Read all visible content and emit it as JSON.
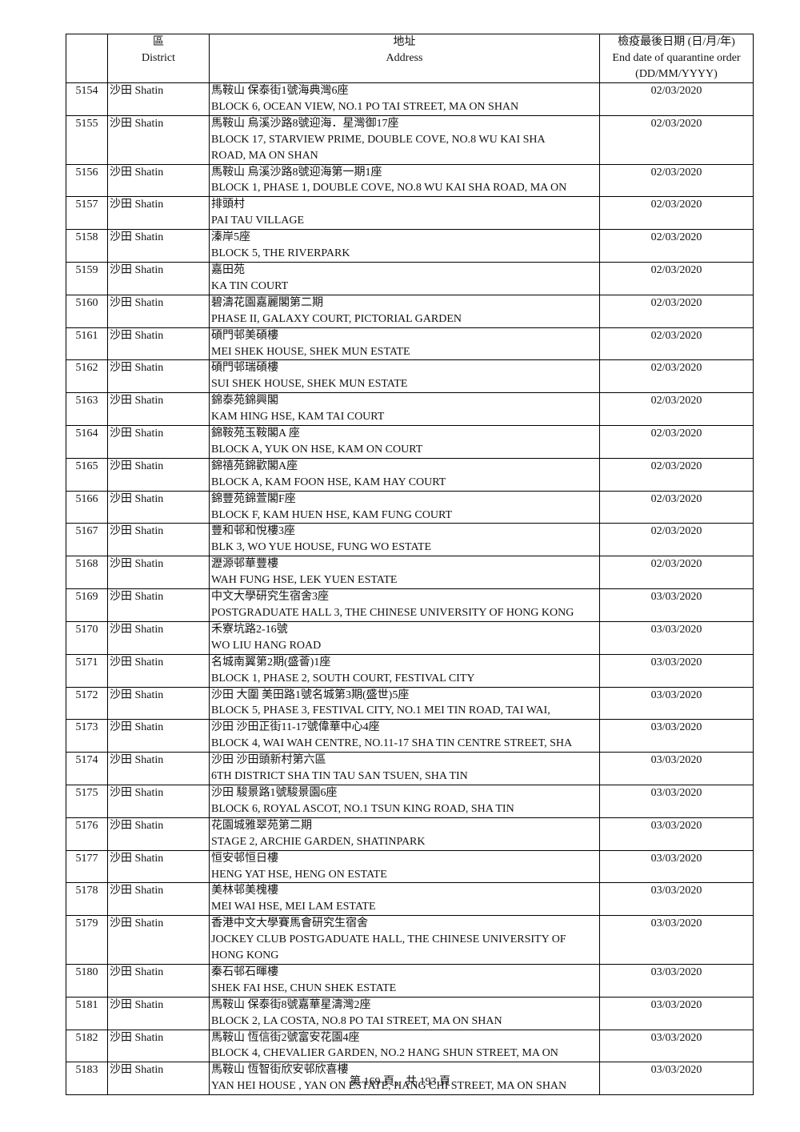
{
  "table": {
    "header": [
      [],
      [
        "區",
        "District"
      ],
      [
        "地址",
        "Address"
      ],
      [
        "檢疫最後日期 (日/月/年)",
        "End date of quarantine order",
        "(DD/MM/YYYY)"
      ]
    ],
    "rows": [
      [
        "5154",
        "沙田 Shatin",
        [
          "馬鞍山 保泰街1號海典灣6座",
          "BLOCK 6, OCEAN VIEW, NO.1 PO TAI STREET, MA ON SHAN"
        ],
        "02/03/2020"
      ],
      [
        "5155",
        "沙田 Shatin",
        [
          "馬鞍山 烏溪沙路8號迎海．星灣御17座",
          "BLOCK 17, STARVIEW PRIME, DOUBLE COVE, NO.8 WU KAI SHA",
          "ROAD, MA ON SHAN"
        ],
        "02/03/2020"
      ],
      [
        "5156",
        "沙田 Shatin",
        [
          "馬鞍山 烏溪沙路8號迎海第一期1座",
          "BLOCK 1, PHASE 1, DOUBLE COVE, NO.8 WU KAI SHA ROAD, MA ON"
        ],
        "02/03/2020"
      ],
      [
        "5157",
        "沙田 Shatin",
        [
          "排頭村",
          "PAI TAU VILLAGE"
        ],
        "02/03/2020"
      ],
      [
        "5158",
        "沙田 Shatin",
        [
          "溱岸5座",
          "BLOCK 5, THE RIVERPARK"
        ],
        "02/03/2020"
      ],
      [
        "5159",
        "沙田 Shatin",
        [
          "嘉田苑",
          "KA TIN COURT"
        ],
        "02/03/2020"
      ],
      [
        "5160",
        "沙田 Shatin",
        [
          "碧濤花園嘉麗閣第二期",
          "PHASE II, GALAXY COURT, PICTORIAL GARDEN"
        ],
        "02/03/2020"
      ],
      [
        "5161",
        "沙田 Shatin",
        [
          "碩門邨美碩樓",
          "MEI SHEK HOUSE, SHEK MUN ESTATE"
        ],
        "02/03/2020"
      ],
      [
        "5162",
        "沙田 Shatin",
        [
          "碩門邨瑞碩樓",
          "SUI SHEK HOUSE, SHEK MUN ESTATE"
        ],
        "02/03/2020"
      ],
      [
        "5163",
        "沙田 Shatin",
        [
          "錦泰苑錦興閣",
          "KAM HING HSE, KAM TAI COURT"
        ],
        "02/03/2020"
      ],
      [
        "5164",
        "沙田 Shatin",
        [
          "錦鞍苑玉鞍閣A 座",
          "BLOCK A, YUK ON HSE, KAM ON COURT"
        ],
        "02/03/2020"
      ],
      [
        "5165",
        "沙田 Shatin",
        [
          "錦禧苑錦歡閣A座",
          "BLOCK A, KAM FOON HSE, KAM HAY COURT"
        ],
        "02/03/2020"
      ],
      [
        "5166",
        "沙田 Shatin",
        [
          "錦豐苑錦萱閣F座",
          "BLOCK F, KAM HUEN HSE, KAM FUNG COURT"
        ],
        "02/03/2020"
      ],
      [
        "5167",
        "沙田 Shatin",
        [
          "豐和邨和悅樓3座",
          "BLK 3, WO YUE HOUSE, FUNG WO ESTATE"
        ],
        "02/03/2020"
      ],
      [
        "5168",
        "沙田 Shatin",
        [
          "瀝源邨華豐樓",
          "WAH FUNG HSE, LEK YUEN ESTATE"
        ],
        "02/03/2020"
      ],
      [
        "5169",
        "沙田 Shatin",
        [
          "中文大學研究生宿舍3座",
          "POSTGRADUATE HALL 3, THE CHINESE UNIVERSITY OF HONG KONG"
        ],
        "03/03/2020"
      ],
      [
        "5170",
        "沙田 Shatin",
        [
          "禾寮坑路2-16號",
          "WO LIU HANG ROAD"
        ],
        "03/03/2020"
      ],
      [
        "5171",
        "沙田 Shatin",
        [
          "名城南翼第2期(盛薈)1座",
          "BLOCK 1, PHASE 2, SOUTH COURT, FESTIVAL CITY"
        ],
        "03/03/2020"
      ],
      [
        "5172",
        "沙田 Shatin",
        [
          "沙田 大圍 美田路1號名城第3期(盛世)5座",
          "BLOCK 5, PHASE 3, FESTIVAL CITY, NO.1 MEI TIN ROAD, TAI WAI,"
        ],
        "03/03/2020"
      ],
      [
        "5173",
        "沙田 Shatin",
        [
          "沙田 沙田正街11-17號偉華中心4座",
          "BLOCK 4, WAI WAH CENTRE, NO.11-17 SHA TIN CENTRE STREET, SHA"
        ],
        "03/03/2020"
      ],
      [
        "5174",
        "沙田 Shatin",
        [
          "沙田 沙田頭新村第六區",
          "6TH DISTRICT SHA TIN TAU SAN TSUEN, SHA TIN"
        ],
        "03/03/2020"
      ],
      [
        "5175",
        "沙田 Shatin",
        [
          "沙田 駿景路1號駿景園6座",
          "BLOCK 6, ROYAL ASCOT, NO.1 TSUN KING ROAD, SHA TIN"
        ],
        "03/03/2020"
      ],
      [
        "5176",
        "沙田 Shatin",
        [
          "花園城雅翠苑第二期",
          "STAGE 2, ARCHIE GARDEN, SHATINPARK"
        ],
        "03/03/2020"
      ],
      [
        "5177",
        "沙田 Shatin",
        [
          "恒安邨恒日樓",
          "HENG YAT HSE, HENG ON ESTATE"
        ],
        "03/03/2020"
      ],
      [
        "5178",
        "沙田 Shatin",
        [
          "美林邨美槐樓",
          "MEI WAI HSE, MEI LAM ESTATE"
        ],
        "03/03/2020"
      ],
      [
        "5179",
        "沙田 Shatin",
        [
          "香港中文大學賽馬會研究生宿舍",
          "JOCKEY CLUB POSTGADUATE HALL, THE CHINESE UNIVERSITY OF",
          "HONG KONG"
        ],
        "03/03/2020"
      ],
      [
        "5180",
        "沙田 Shatin",
        [
          "秦石邨石暉樓",
          "SHEK FAI HSE, CHUN SHEK ESTATE"
        ],
        "03/03/2020"
      ],
      [
        "5181",
        "沙田 Shatin",
        [
          "馬鞍山 保泰街8號嘉華星濤灣2座",
          "BLOCK 2, LA COSTA, NO.8 PO TAI STREET, MA ON SHAN"
        ],
        "03/03/2020"
      ],
      [
        "5182",
        "沙田 Shatin",
        [
          "馬鞍山 恆信街2號富安花園4座",
          "BLOCK 4, CHEVALIER GARDEN, NO.2 HANG SHUN STREET, MA ON"
        ],
        "03/03/2020"
      ],
      [
        "5183",
        "沙田 Shatin",
        [
          "馬鞍山 恆智街欣安邨欣喜樓",
          "YAN HEI HOUSE , YAN ON ESTATE, HANG CHI STREET, MA ON SHAN"
        ],
        "03/03/2020"
      ]
    ]
  },
  "footer": "第 169 頁，共 193 頁"
}
